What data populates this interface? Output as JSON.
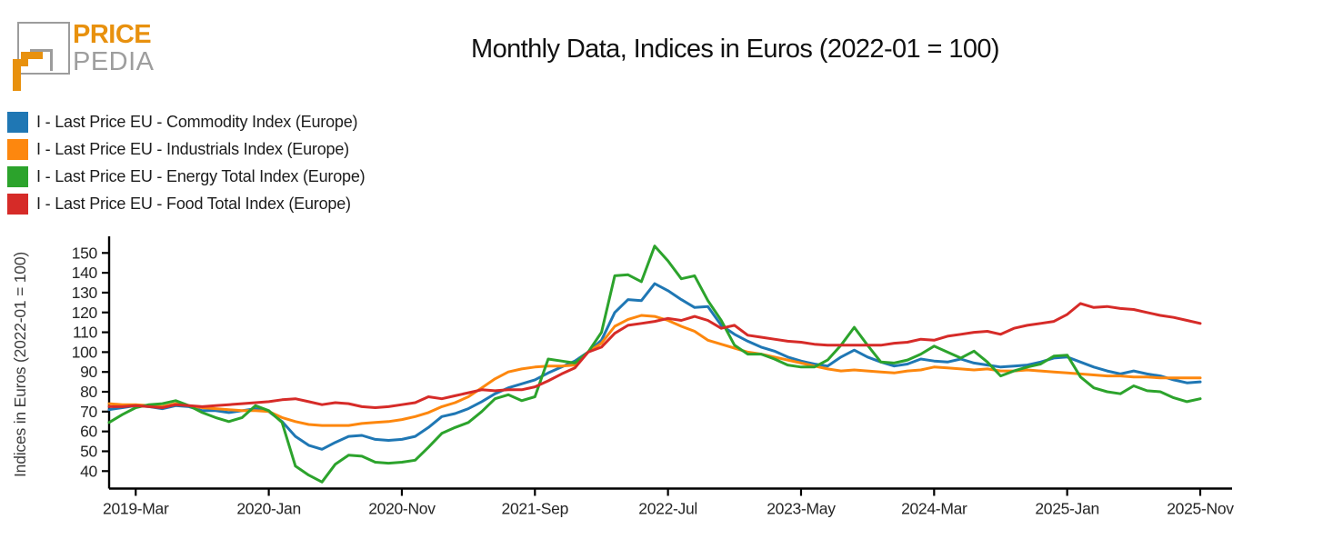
{
  "logo": {
    "brand_top": "PRICE",
    "brand_bottom": "PEDIA",
    "orange": "#e8910e",
    "gray": "#9c9c9c"
  },
  "title": "Monthly Data, Indices in Euros (2022-01 = 100)",
  "chart_data": {
    "type": "line",
    "title": "Monthly Data, Indices in Euros (2022-01 = 100)",
    "xlabel": "",
    "ylabel": "Indices in Euros (2022-01 = 100)",
    "grid": false,
    "legend_position": "upper-left-outside",
    "ylim": [
      31,
      158
    ],
    "yticks": [
      40,
      50,
      60,
      70,
      80,
      90,
      100,
      110,
      120,
      130,
      140,
      150
    ],
    "x_tick_labels": [
      "2019-Mar",
      "2020-Jan",
      "2020-Nov",
      "2021-Sep",
      "2022-Jul",
      "2023-May",
      "2024-Mar",
      "2025-Jan",
      "2025-Nov"
    ],
    "x_tick_indices": [
      2,
      12,
      22,
      32,
      42,
      52,
      62,
      72,
      82
    ],
    "x": [
      "2019-01",
      "2019-02",
      "2019-03",
      "2019-04",
      "2019-05",
      "2019-06",
      "2019-07",
      "2019-08",
      "2019-09",
      "2019-10",
      "2019-11",
      "2019-12",
      "2020-01",
      "2020-02",
      "2020-03",
      "2020-04",
      "2020-05",
      "2020-06",
      "2020-07",
      "2020-08",
      "2020-09",
      "2020-10",
      "2020-11",
      "2020-12",
      "2021-01",
      "2021-02",
      "2021-03",
      "2021-04",
      "2021-05",
      "2021-06",
      "2021-07",
      "2021-08",
      "2021-09",
      "2021-10",
      "2021-11",
      "2021-12",
      "2022-01",
      "2022-02",
      "2022-03",
      "2022-04",
      "2022-05",
      "2022-06",
      "2022-07",
      "2022-08",
      "2022-09",
      "2022-10",
      "2022-11",
      "2022-12",
      "2023-01",
      "2023-02",
      "2023-03",
      "2023-04",
      "2023-05",
      "2023-06",
      "2023-07",
      "2023-08",
      "2023-09",
      "2023-10",
      "2023-11",
      "2023-12",
      "2024-01",
      "2024-02",
      "2024-03",
      "2024-04",
      "2024-05",
      "2024-06",
      "2024-07",
      "2024-08",
      "2024-09",
      "2024-10",
      "2024-11",
      "2024-12",
      "2025-01",
      "2025-02",
      "2025-03",
      "2025-04",
      "2025-05",
      "2025-06",
      "2025-07",
      "2025-08",
      "2025-09",
      "2025-10",
      "2025-11"
    ],
    "series": [
      {
        "name": "I - Last Price EU - Commodity Index (Europe)",
        "color": "#1f77b4",
        "values": [
          71,
          72,
          73,
          72.5,
          71.5,
          73,
          72.5,
          70.5,
          70.5,
          69.5,
          70.5,
          71.5,
          70,
          65,
          57.5,
          53,
          51,
          54.5,
          57.5,
          58,
          56,
          55.5,
          56,
          57.5,
          62,
          67.5,
          69,
          71.5,
          75,
          79,
          82,
          84,
          86,
          89.5,
          92.5,
          95.5,
          100,
          106,
          120,
          126.5,
          126,
          134.5,
          131,
          126.5,
          122.5,
          123,
          113.5,
          109,
          105.5,
          102.5,
          100.5,
          97.5,
          95.5,
          94,
          93,
          97.5,
          101,
          97.5,
          95,
          93,
          94,
          96.5,
          95.5,
          95,
          96.5,
          94.5,
          93.5,
          92.5,
          93,
          93.5,
          95,
          97,
          97.5,
          95,
          92.5,
          90.5,
          89,
          90.5,
          89,
          88,
          86,
          84.5,
          85
        ]
      },
      {
        "name": "I - Last Price EU - Industrials Index (Europe)",
        "color": "#fd870e",
        "values": [
          74,
          73.5,
          73.5,
          73,
          72.5,
          74,
          73,
          72,
          71.5,
          71,
          70.5,
          70.5,
          70,
          67,
          65,
          63.5,
          63,
          63,
          63,
          64,
          64.5,
          65,
          66,
          67.5,
          69.5,
          72.5,
          74.5,
          77.5,
          82,
          86.5,
          90,
          91.5,
          92.5,
          93,
          93,
          93.5,
          100,
          104.5,
          113,
          116.5,
          118.5,
          118,
          116,
          113,
          110.5,
          106,
          104,
          102,
          100,
          99,
          97.5,
          96,
          94.5,
          93,
          91.5,
          90.5,
          91,
          90.5,
          90,
          89.5,
          90.5,
          91,
          92.5,
          92,
          91.5,
          91,
          91.5,
          90.5,
          90.5,
          91,
          90.5,
          90,
          89.5,
          89,
          88.5,
          88,
          88,
          87.5,
          87.5,
          87,
          87,
          87,
          87
        ]
      },
      {
        "name": "I - Last Price EU - Energy Total Index (Europe)",
        "color": "#2ca32c",
        "values": [
          64.5,
          68.5,
          72,
          73.5,
          74,
          75.5,
          73,
          69.5,
          67,
          65,
          67,
          73,
          70.5,
          64.5,
          42.5,
          38,
          34.5,
          43.5,
          48,
          47.5,
          44.5,
          44,
          44.5,
          45.5,
          52,
          59,
          62,
          64.5,
          70,
          76.5,
          78.5,
          75.5,
          77.5,
          96.5,
          95.5,
          94.5,
          100,
          110,
          138.5,
          139,
          135.5,
          153.5,
          146,
          137,
          138.5,
          126,
          116,
          103.5,
          99,
          99,
          96.5,
          93.5,
          92.5,
          92.5,
          96,
          103.5,
          112.5,
          103.5,
          95,
          94.5,
          96,
          99,
          103,
          100,
          97,
          100.5,
          95,
          88,
          90.5,
          92.5,
          94,
          98,
          98.5,
          87.5,
          82,
          80,
          79,
          83,
          80.5,
          80,
          77,
          75,
          76.5
        ]
      },
      {
        "name": "I - Last Price EU - Food Total Index (Europe)",
        "color": "#d62b28",
        "values": [
          72.5,
          72.5,
          73,
          72.5,
          72,
          73.5,
          73,
          72.5,
          73,
          73.5,
          74,
          74.5,
          75,
          76,
          76.5,
          75,
          73.5,
          74.5,
          74,
          72.5,
          72,
          72.5,
          73.5,
          74.5,
          77.5,
          76.5,
          78,
          79.5,
          81,
          80.5,
          81,
          81,
          82.5,
          85.5,
          89,
          92,
          100,
          102.5,
          109.5,
          113.5,
          114.5,
          115.5,
          117,
          116,
          118,
          116,
          112,
          113.5,
          108.5,
          107.5,
          106.5,
          105.5,
          105,
          104,
          103.5,
          103.5,
          103.5,
          103.5,
          103.5,
          104.5,
          105,
          106.5,
          106,
          108,
          109,
          110,
          110.5,
          109,
          112,
          113.5,
          114.5,
          115.5,
          119,
          124.5,
          122.5,
          123,
          122,
          121.5,
          120,
          118.5,
          117.5,
          116,
          114.5
        ]
      }
    ]
  }
}
